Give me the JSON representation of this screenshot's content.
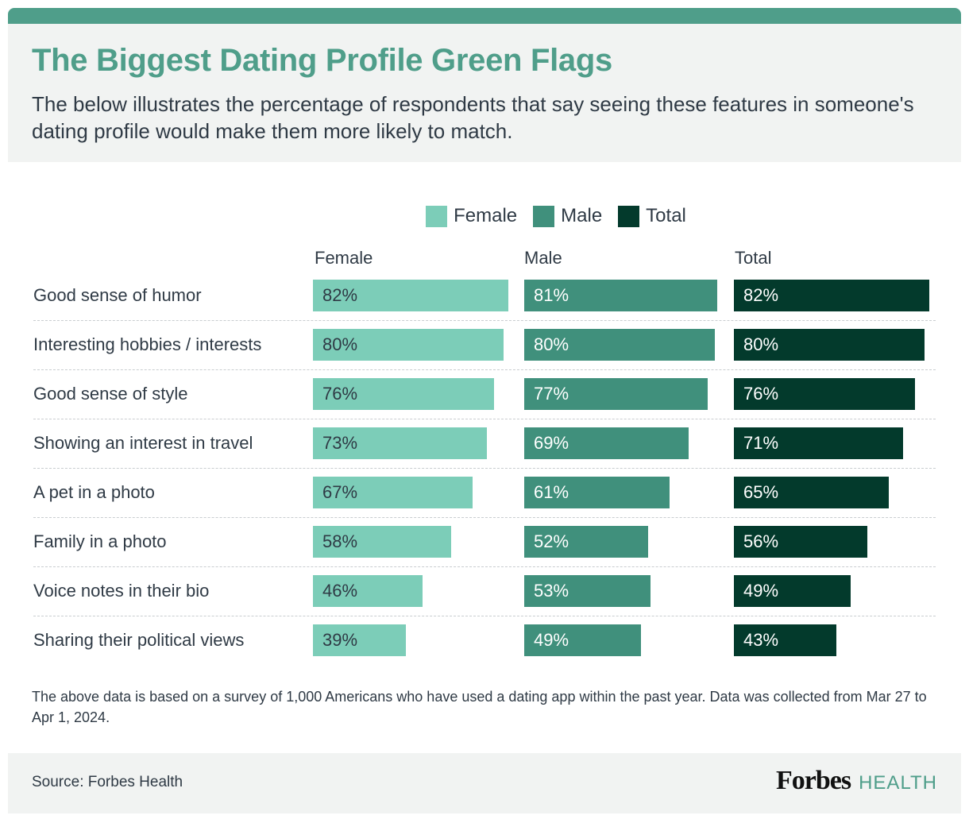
{
  "header": {
    "title": "The Biggest Dating Profile Green Flags",
    "subtitle": "The below illustrates the percentage of respondents that say seeing these features in someone's dating profile would make them more likely to match."
  },
  "colors": {
    "female": "#7ccdb8",
    "male": "#40907c",
    "total": "#033a2c",
    "accent": "#4f9e8a"
  },
  "chart_data": {
    "type": "bar",
    "orientation": "horizontal",
    "legend_position": "top-center",
    "xlim": [
      0,
      100
    ],
    "categories": [
      "Good sense of humor",
      "Interesting hobbies / interests",
      "Good sense of style",
      "Showing an interest in travel",
      "A pet in a photo",
      "Family in a photo",
      "Voice notes in their bio",
      "Sharing their political views"
    ],
    "series": [
      {
        "name": "Female",
        "values": [
          82,
          80,
          76,
          73,
          67,
          58,
          46,
          39
        ]
      },
      {
        "name": "Male",
        "values": [
          81,
          80,
          77,
          69,
          61,
          52,
          53,
          49
        ]
      },
      {
        "name": "Total",
        "values": [
          82,
          80,
          76,
          71,
          65,
          56,
          49,
          43
        ]
      }
    ],
    "column_headers": [
      "Female",
      "Male",
      "Total"
    ],
    "value_suffix": "%"
  },
  "footnote": "The above data is based on a survey of 1,000 Americans who have used a dating app within the past year. Data was collected from Mar 27 to Apr 1, 2024.",
  "footer": {
    "source": "Source: Forbes Health",
    "logo_primary": "Forbes",
    "logo_secondary": "HEALTH"
  }
}
